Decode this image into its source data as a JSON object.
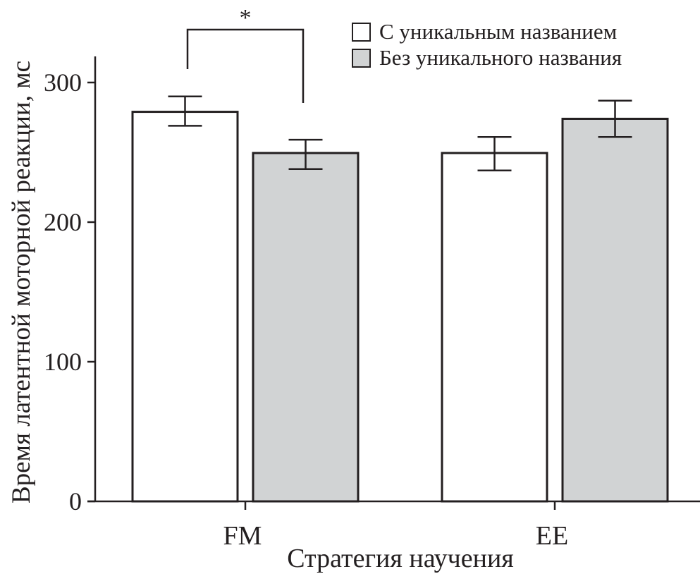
{
  "chart_data": {
    "type": "bar",
    "title": "",
    "xlabel": "Стратегия научения",
    "ylabel": "Время латентной моторной реакции, мс",
    "ylim": [
      0,
      300
    ],
    "yticks": [
      0,
      100,
      200,
      300
    ],
    "ytick_labels": [
      "0",
      "100",
      "200",
      "300"
    ],
    "categories": [
      "FM",
      "EE"
    ],
    "legend_position": "top-right",
    "series": [
      {
        "name": "С уникальным названием",
        "color": "#ffffff",
        "values": [
          279,
          249.5
        ],
        "error_low": [
          269,
          237
        ],
        "error_high": [
          290,
          261
        ]
      },
      {
        "name": "Без уникального названия",
        "color": "#d1d3d4",
        "values": [
          249.5,
          274
        ],
        "error_low": [
          238,
          261
        ],
        "error_high": [
          259,
          287
        ]
      }
    ],
    "annotations": [
      {
        "text": "*",
        "between": [
          "FM: С уникальным названием",
          "FM: Без уникального названия"
        ]
      }
    ]
  }
}
